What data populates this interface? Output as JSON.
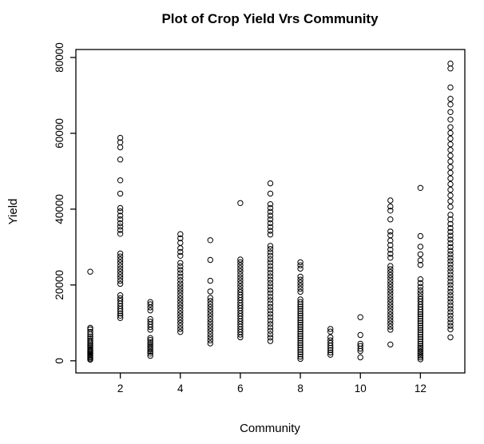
{
  "figure": {
    "background": "#ffffff",
    "foreground": "#000000"
  },
  "chart_data": {
    "type": "scatter",
    "title": "Plot of Crop Yield Vrs Community",
    "xlabel": "Community",
    "ylabel": "Yield",
    "marker": "open-circle",
    "legend": "none",
    "grid": false,
    "xlim": [
      0.52,
      13.48
    ],
    "ylim": [
      -3200,
      82100
    ],
    "x_ticks": [
      2,
      4,
      6,
      8,
      10,
      12
    ],
    "x_tick_labels": [
      "2",
      "4",
      "6",
      "8",
      "10",
      "12"
    ],
    "y_ticks": [
      0,
      20000,
      40000,
      60000,
      80000
    ],
    "y_tick_labels": [
      "0",
      "20000",
      "40000",
      "60000",
      "80000"
    ],
    "series": [
      {
        "name": "yield",
        "groups": [
          {
            "x": 1,
            "y": [
              300,
              600,
              900,
              1200,
              1500,
              1800,
              2100,
              2400,
              2700,
              3000,
              3400,
              3800,
              4200,
              4600,
              5000,
              5400,
              5900,
              6400,
              7000,
              7600,
              8300,
              8700,
              23500
            ]
          },
          {
            "x": 2,
            "y": [
              11300,
              11900,
              12500,
              13100,
              13700,
              14400,
              15100,
              15800,
              16500,
              17300,
              20300,
              21100,
              21900,
              22700,
              23500,
              24300,
              25100,
              25900,
              26700,
              27500,
              28300,
              33500,
              34500,
              35400,
              36300,
              37300,
              38300,
              39400,
              40300,
              44100,
              47600,
              53100,
              56300,
              57600,
              58800
            ]
          },
          {
            "x": 3,
            "y": [
              1300,
              1900,
              2400,
              2900,
              3400,
              3900,
              4400,
              4900,
              5500,
              6000,
              8200,
              8900,
              9600,
              10300,
              11000,
              13300,
              14100,
              14900,
              15500
            ]
          },
          {
            "x": 4,
            "y": [
              7600,
              8400,
              9200,
              10000,
              10800,
              11600,
              12400,
              13200,
              14000,
              14800,
              15600,
              16400,
              17200,
              18000,
              18800,
              19600,
              20400,
              21300,
              22200,
              23100,
              24000,
              24900,
              25800,
              27700,
              28700,
              29700,
              31100,
              32300,
              33400
            ]
          },
          {
            "x": 5,
            "y": [
              4600,
              5400,
              6200,
              7000,
              7800,
              8600,
              9400,
              10200,
              11000,
              11800,
              12600,
              13400,
              14200,
              15000,
              15800,
              16600,
              18300,
              21100,
              26600,
              31800
            ]
          },
          {
            "x": 6,
            "y": [
              6200,
              6900,
              7600,
              8300,
              9000,
              9700,
              10400,
              11100,
              11800,
              12500,
              13200,
              13900,
              14600,
              15300,
              16000,
              16700,
              17400,
              18100,
              18800,
              19600,
              20400,
              21200,
              22000,
              22800,
              23600,
              24400,
              25200,
              26000,
              26700,
              41600
            ]
          },
          {
            "x": 7,
            "y": [
              5200,
              6100,
              7000,
              7900,
              8800,
              9700,
              10600,
              11500,
              12400,
              13300,
              14200,
              15100,
              16000,
              16900,
              17800,
              18700,
              19600,
              20500,
              21400,
              22300,
              23200,
              24100,
              25000,
              25900,
              26800,
              27700,
              28600,
              29500,
              30300,
              33300,
              34300,
              35300,
              36300,
              37300,
              38300,
              39300,
              40300,
              41300,
              44100,
              46800
            ]
          },
          {
            "x": 8,
            "y": [
              500,
              1100,
              1700,
              2300,
              2900,
              3500,
              4100,
              4700,
              5300,
              5900,
              6500,
              7100,
              7700,
              8300,
              8900,
              9500,
              10100,
              10700,
              11300,
              11900,
              12500,
              13100,
              13700,
              14300,
              14900,
              15500,
              16200,
              18200,
              19000,
              19800,
              20600,
              21400,
              22200,
              24300,
              25200,
              26000
            ]
          },
          {
            "x": 9,
            "y": [
              1600,
              2200,
              2800,
              3400,
              4000,
              4700,
              5400,
              6200,
              7700,
              8400
            ]
          },
          {
            "x": 10,
            "y": [
              900,
              2600,
              3200,
              3900,
              4500,
              6800,
              11500
            ]
          },
          {
            "x": 11,
            "y": [
              4300,
              8200,
              9000,
              9800,
              10600,
              11400,
              12200,
              13000,
              13800,
              14600,
              15400,
              16200,
              17000,
              17800,
              18600,
              19400,
              20200,
              21000,
              21800,
              22600,
              23400,
              24200,
              25000,
              27200,
              28200,
              29300,
              30500,
              31700,
              33100,
              34100,
              37300,
              39600,
              40700,
              42300
            ]
          },
          {
            "x": 12,
            "y": [
              400,
              900,
              1400,
              1900,
              2400,
              2900,
              3400,
              3900,
              4500,
              5100,
              5700,
              6300,
              6900,
              7500,
              8100,
              8700,
              9300,
              9900,
              10500,
              11100,
              11700,
              12300,
              12900,
              13500,
              14200,
              14900,
              15600,
              16300,
              17000,
              17800,
              18600,
              19500,
              20500,
              21500,
              25300,
              26500,
              28100,
              30100,
              32900,
              45600
            ]
          },
          {
            "x": 13,
            "y": [
              6200,
              8300,
              9200,
              10100,
              11000,
              11900,
              12800,
              13700,
              14600,
              15500,
              16400,
              17300,
              18200,
              19100,
              20000,
              20900,
              21800,
              22700,
              23600,
              24500,
              25400,
              26300,
              27200,
              28100,
              29000,
              30000,
              31000,
              32000,
              33000,
              34000,
              35000,
              36100,
              37300,
              38500,
              40600,
              42100,
              43600,
              45100,
              46600,
              48100,
              49600,
              51100,
              52600,
              54100,
              55600,
              57100,
              58600,
              60100,
              61600,
              63600,
              65600,
              67600,
              69100,
              72100,
              77100,
              78400
            ]
          }
        ]
      }
    ]
  }
}
